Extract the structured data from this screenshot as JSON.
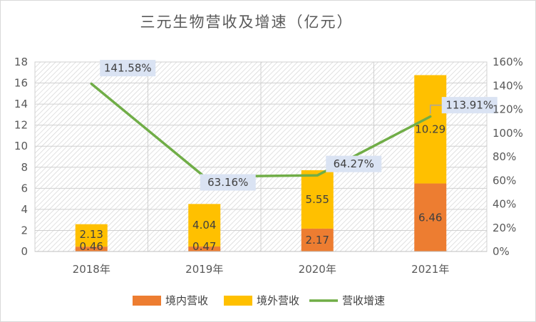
{
  "chart_data": {
    "type": "bar",
    "title": "三元生物营收及增速（亿元）",
    "categories": [
      "2018年",
      "2019年",
      "2020年",
      "2021年"
    ],
    "series": [
      {
        "name": "境内营收",
        "type": "stacked-bar",
        "axis": "left",
        "color": "#ed7d31",
        "values": [
          0.46,
          0.47,
          2.17,
          6.46
        ],
        "labels": [
          "0.46",
          "0.47",
          "2.17",
          "6.46"
        ]
      },
      {
        "name": "境外营收",
        "type": "stacked-bar",
        "axis": "left",
        "color": "#ffc000",
        "values": [
          2.13,
          4.04,
          5.55,
          10.29
        ],
        "labels": [
          "2.13",
          "4.04",
          "5.55",
          "10.29"
        ]
      },
      {
        "name": "营收增速",
        "type": "line",
        "axis": "right",
        "color": "#70ad47",
        "values": [
          141.58,
          63.16,
          64.27,
          113.91
        ],
        "labels": [
          "141.58%",
          "63.16%",
          "64.27%",
          "113.91%"
        ]
      }
    ],
    "y_left": {
      "min": 0,
      "max": 18,
      "step": 2,
      "ticks": [
        "0",
        "2",
        "4",
        "6",
        "8",
        "10",
        "12",
        "14",
        "16",
        "18"
      ]
    },
    "y_right": {
      "min": 0,
      "max": 160,
      "step": 20,
      "ticks": [
        "0%",
        "20%",
        "40%",
        "60%",
        "80%",
        "100%",
        "120%",
        "140%",
        "160%"
      ]
    },
    "legend": [
      "境内营收",
      "境外营收",
      "营收增速"
    ],
    "legend_position": "bottom",
    "plot_background": "hatched",
    "colors": {
      "domestic": "#ed7d31",
      "overseas": "#ffc000",
      "growth": "#70ad47",
      "label_box": "#dae3f3"
    }
  }
}
